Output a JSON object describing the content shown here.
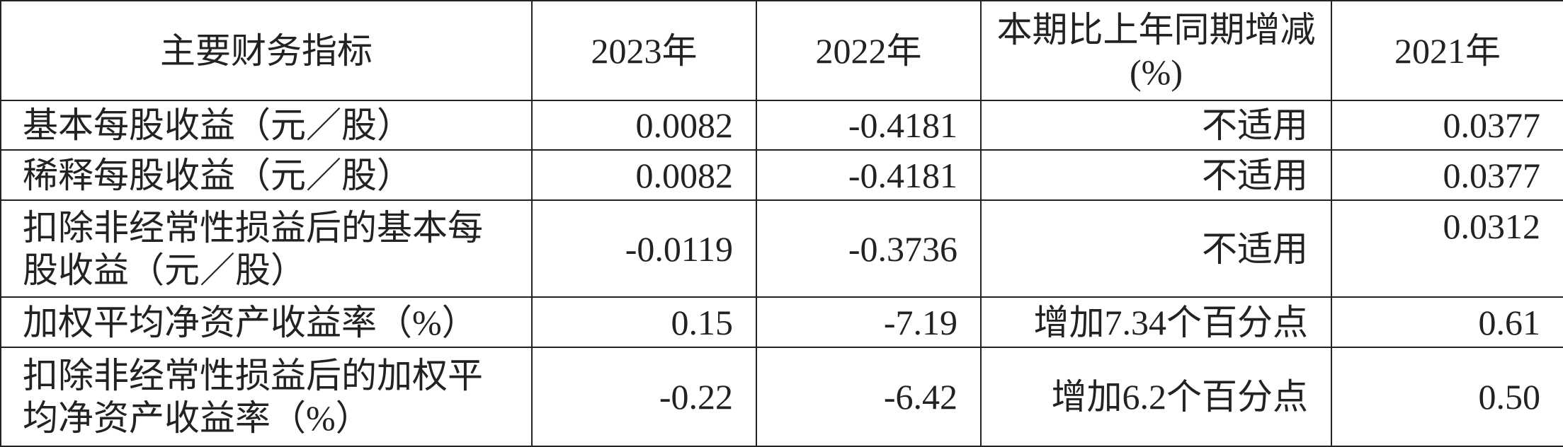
{
  "table": {
    "header": [
      "主要财务指标",
      "2023年",
      "2022年",
      "本期比上年同期增减(%)",
      "2021年"
    ],
    "rows": [
      [
        "基本每股收益（元／股）",
        "0.0082",
        "-0.4181",
        "不适用",
        "0.0377"
      ],
      [
        "稀释每股收益（元／股）",
        "0.0082",
        "-0.4181",
        "不适用",
        "0.0377"
      ],
      [
        "扣除非经常性损益后的基本每股收益（元／股）",
        "-0.0119",
        "-0.3736",
        "不适用",
        "0.0312"
      ],
      [
        "加权平均净资产收益率（%）",
        "0.15",
        "-7.19",
        "增加7.34个百分点",
        "0.61"
      ],
      [
        "扣除非经常性损益后的加权平均净资产收益率（%）",
        "-0.22",
        "-6.42",
        "增加6.2个百分点",
        "0.50"
      ]
    ]
  }
}
